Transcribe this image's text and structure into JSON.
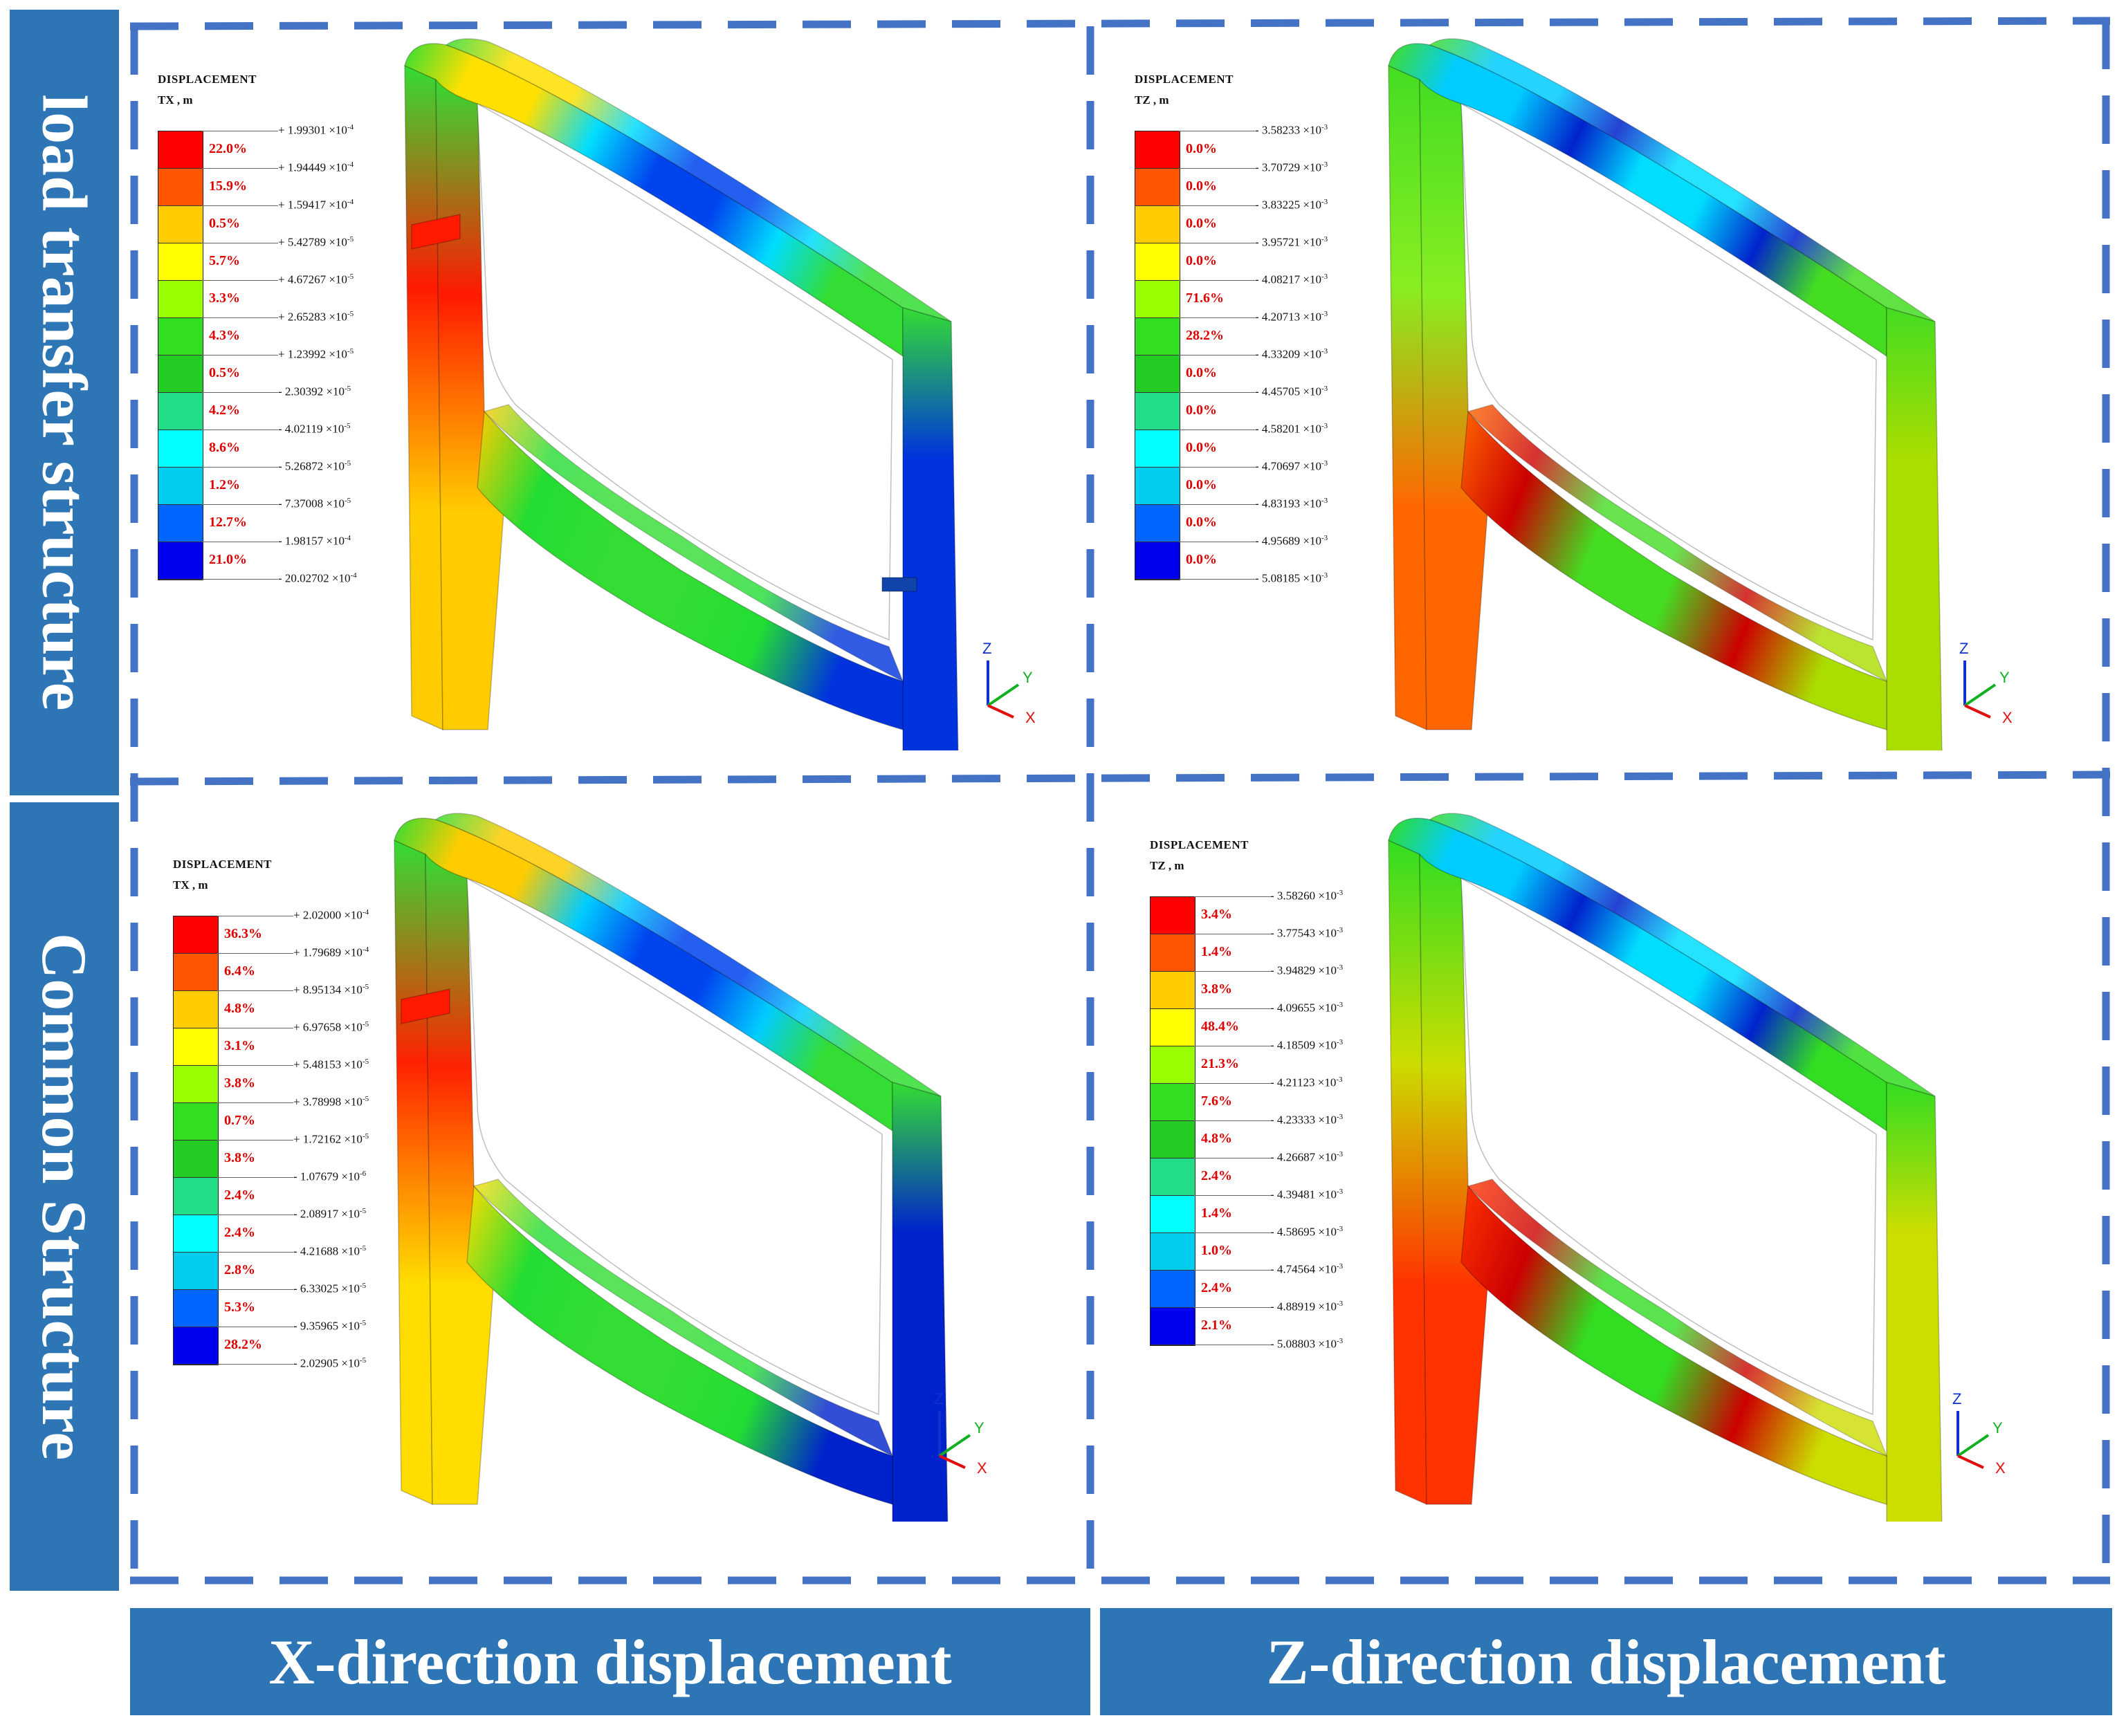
{
  "row_labels": [
    "load transfer structure",
    "Common Structure"
  ],
  "column_labels": [
    "X-direction displacement",
    "Z-direction displacement"
  ],
  "colors": {
    "banner": "#2e75b6",
    "dash": "#4472c4",
    "percent_text": "#e00000",
    "scale": [
      "#ff0000",
      "#ff5500",
      "#ffcc00",
      "#ffff00",
      "#99ff00",
      "#33dd22",
      "#22cc22",
      "#22dd88",
      "#00ffff",
      "#00ccee",
      "#0066ff",
      "#0000ee"
    ]
  },
  "panels": [
    {
      "id": "load-x",
      "legend_title": "DISPLACEMENT",
      "component": "TX ,   m",
      "percents": [
        "22.0%",
        "15.9%",
        "0.5%",
        "5.7%",
        "3.3%",
        "4.3%",
        "0.5%",
        "4.2%",
        "8.6%",
        "1.2%",
        "12.7%",
        "21.0%"
      ],
      "values": [
        "+ 1.99301 ×10",
        "+ 1.94449 ×10",
        "+ 1.59417 ×10",
        "+ 5.42789 ×10",
        "+ 4.67267 ×10",
        "+ 2.65283 ×10",
        "+ 1.23992 ×10",
        "- 2.30392 ×10",
        "- 4.02119 ×10",
        "- 5.26872 ×10",
        "- 7.37008 ×10",
        "- 1.98157 ×10",
        "- 20.02702 ×10"
      ],
      "exponents": [
        "-4",
        "-4",
        "-4",
        "-5",
        "-5",
        "-5",
        "-5",
        "-5",
        "-5",
        "-5",
        "-5",
        "-4",
        "-4"
      ],
      "axis_labels": {
        "z": "Z",
        "y": "Y",
        "x": "X"
      },
      "color_map": [
        "#33dd33",
        "#ffe000",
        "#00ddff",
        "#0044ee",
        "#ff1a00",
        "#ffcc00",
        "#22dd33",
        "#0033dd"
      ]
    },
    {
      "id": "load-z",
      "legend_title": "DISPLACEMENT",
      "component": "TZ ,   m",
      "percents": [
        "0.0%",
        "0.0%",
        "0.0%",
        "0.0%",
        "71.6%",
        "28.2%",
        "0.0%",
        "0.0%",
        "0.0%",
        "0.0%",
        "0.0%",
        "0.0%"
      ],
      "values": [
        "- 3.58233 ×10",
        "- 3.70729 ×10",
        "- 3.83225 ×10",
        "- 3.95721 ×10",
        "- 4.08217 ×10",
        "- 4.20713 ×10",
        "- 4.33209 ×10",
        "- 4.45705 ×10",
        "- 4.58201 ×10",
        "- 4.70697 ×10",
        "- 4.83193 ×10",
        "- 4.95689 ×10",
        "- 5.08185 ×10"
      ],
      "exponents": [
        "-3",
        "-3",
        "-3",
        "-3",
        "-3",
        "-3",
        "-3",
        "-3",
        "-3",
        "-3",
        "-3",
        "-3",
        "-3"
      ],
      "axis_labels": {
        "z": "Z",
        "y": "Y",
        "x": "X"
      },
      "color_map": [
        "#44dd22",
        "#00ccff",
        "#0022cc",
        "#00ddff",
        "#88ee22",
        "#ff6600",
        "#cc0000",
        "#aadd00"
      ]
    },
    {
      "id": "common-x",
      "legend_title": "DISPLACEMENT",
      "component": "TX ,   m",
      "percents": [
        "36.3%",
        "6.4%",
        "4.8%",
        "3.1%",
        "3.8%",
        "0.7%",
        "3.8%",
        "2.4%",
        "2.4%",
        "2.8%",
        "5.3%",
        "28.2%"
      ],
      "values": [
        "+ 2.02000 ×10",
        "+ 1.79689 ×10",
        "+ 8.95134 ×10",
        "+ 6.97658 ×10",
        "+ 5.48153 ×10",
        "+ 3.78998 ×10",
        "+ 1.72162 ×10",
        "- 1.07679 ×10",
        "- 2.08917 ×10",
        "- 4.21688 ×10",
        "- 6.33025 ×10",
        "- 9.35965 ×10",
        "- 2.02905 ×10"
      ],
      "exponents": [
        "-4",
        "-4",
        "-5",
        "-5",
        "-5",
        "-5",
        "-5",
        "-6",
        "-5",
        "-5",
        "-5",
        "-5",
        "-5"
      ],
      "axis_labels": {
        "z": "Z",
        "y": "Y",
        "x": "X"
      },
      "color_map": [
        "#33dd33",
        "#ffcc00",
        "#00ccff",
        "#0044ee",
        "#ff2200",
        "#ffdd00",
        "#22dd33",
        "#0022cc"
      ]
    },
    {
      "id": "common-z",
      "legend_title": "DISPLACEMENT",
      "component": "TZ ,   m",
      "percents": [
        "3.4%",
        "1.4%",
        "3.8%",
        "48.4%",
        "21.3%",
        "7.6%",
        "4.8%",
        "2.4%",
        "1.4%",
        "1.0%",
        "2.4%",
        "2.1%"
      ],
      "values": [
        "- 3.58260 ×10",
        "- 3.77543 ×10",
        "- 3.94829 ×10",
        "- 4.09655 ×10",
        "- 4.18509 ×10",
        "- 4.21123 ×10",
        "- 4.23333 ×10",
        "- 4.26687 ×10",
        "- 4.39481 ×10",
        "- 4.58695 ×10",
        "- 4.74564 ×10",
        "- 4.88919 ×10",
        "- 5.08803 ×10"
      ],
      "exponents": [
        "-3",
        "-3",
        "-3",
        "-3",
        "-3",
        "-3",
        "-3",
        "-3",
        "-3",
        "-3",
        "-3",
        "-3",
        "-3"
      ],
      "axis_labels": {
        "z": "Z",
        "y": "Y",
        "x": "X"
      },
      "color_map": [
        "#33dd22",
        "#00ccff",
        "#0022cc",
        "#00ddff",
        "#ccdd00",
        "#ff3300",
        "#cc0000",
        "#ccdd00"
      ]
    }
  ]
}
